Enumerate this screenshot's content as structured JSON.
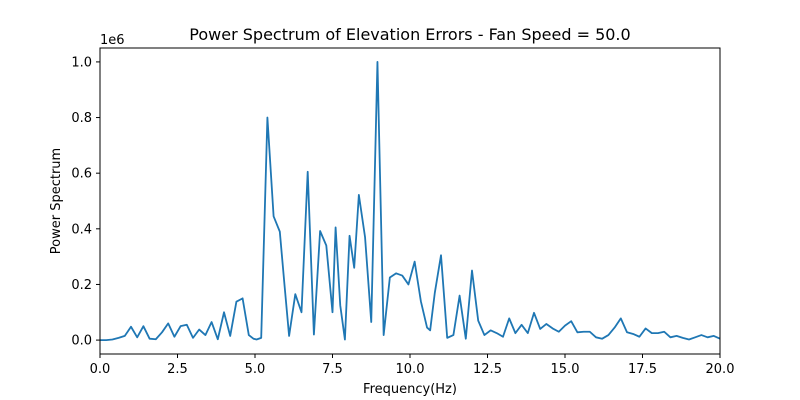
{
  "chart_data": {
    "type": "line",
    "title": "Power Spectrum of Elevation Errors - Fan Speed = 50.0",
    "xlabel": "Frequency(Hz)",
    "ylabel": "Power Spectrum",
    "y_offset_label": "1e6",
    "xlim": [
      0,
      20
    ],
    "ylim": [
      -0.05,
      1.05
    ],
    "x_ticks": [
      0,
      2.5,
      5,
      7.5,
      10,
      12.5,
      15,
      17.5,
      20
    ],
    "x_tick_labels": [
      "0.0",
      "2.5",
      "5.0",
      "7.5",
      "10.0",
      "12.5",
      "15.0",
      "17.5",
      "20.0"
    ],
    "y_ticks": [
      0,
      0.2,
      0.4,
      0.6,
      0.8,
      1.0
    ],
    "y_tick_labels": [
      "0.0",
      "0.2",
      "0.4",
      "0.6",
      "0.8",
      "1.0"
    ],
    "grid": false,
    "line_color": "#1f77b4",
    "series": [
      {
        "x": [
          0.0,
          0.2,
          0.4,
          0.6,
          0.8,
          1.0,
          1.2,
          1.4,
          1.6,
          1.8,
          2.0,
          2.2,
          2.4,
          2.6,
          2.8,
          3.0,
          3.2,
          3.4,
          3.6,
          3.8,
          4.0,
          4.2,
          4.4,
          4.6,
          4.8,
          4.95,
          5.05,
          5.2,
          5.4,
          5.6,
          5.8,
          5.95,
          6.1,
          6.3,
          6.5,
          6.7,
          6.9,
          7.1,
          7.3,
          7.5,
          7.6,
          7.75,
          7.9,
          8.05,
          8.2,
          8.35,
          8.55,
          8.75,
          8.95,
          9.15,
          9.35,
          9.55,
          9.75,
          9.95,
          10.15,
          10.35,
          10.55,
          10.65,
          10.8,
          11.0,
          11.2,
          11.4,
          11.6,
          11.8,
          12.0,
          12.2,
          12.4,
          12.6,
          12.8,
          13.0,
          13.2,
          13.4,
          13.6,
          13.8,
          14.0,
          14.2,
          14.4,
          14.6,
          14.8,
          15.0,
          15.2,
          15.4,
          15.6,
          15.8,
          16.0,
          16.2,
          16.4,
          16.6,
          16.8,
          17.0,
          17.2,
          17.4,
          17.6,
          17.8,
          18.0,
          18.2,
          18.4,
          18.6,
          18.8,
          19.0,
          19.2,
          19.4,
          19.6,
          19.8,
          20.0
        ],
        "y": [
          0.0,
          0.0,
          0.002,
          0.008,
          0.015,
          0.048,
          0.01,
          0.05,
          0.005,
          0.003,
          0.028,
          0.06,
          0.012,
          0.05,
          0.055,
          0.008,
          0.038,
          0.018,
          0.065,
          0.003,
          0.1,
          0.015,
          0.138,
          0.15,
          0.018,
          0.005,
          0.002,
          0.008,
          0.8,
          0.445,
          0.39,
          0.2,
          0.015,
          0.165,
          0.1,
          0.605,
          0.02,
          0.392,
          0.34,
          0.1,
          0.405,
          0.125,
          0.002,
          0.375,
          0.26,
          0.522,
          0.37,
          0.065,
          1.0,
          0.018,
          0.225,
          0.24,
          0.232,
          0.2,
          0.282,
          0.14,
          0.045,
          0.035,
          0.17,
          0.305,
          0.008,
          0.018,
          0.16,
          0.005,
          0.25,
          0.07,
          0.018,
          0.035,
          0.025,
          0.012,
          0.078,
          0.025,
          0.055,
          0.025,
          0.098,
          0.04,
          0.058,
          0.042,
          0.03,
          0.052,
          0.068,
          0.028,
          0.03,
          0.03,
          0.01,
          0.005,
          0.018,
          0.045,
          0.078,
          0.028,
          0.022,
          0.012,
          0.042,
          0.025,
          0.025,
          0.03,
          0.01,
          0.015,
          0.008,
          0.002,
          0.01,
          0.018,
          0.01,
          0.015,
          0.005
        ]
      }
    ]
  }
}
